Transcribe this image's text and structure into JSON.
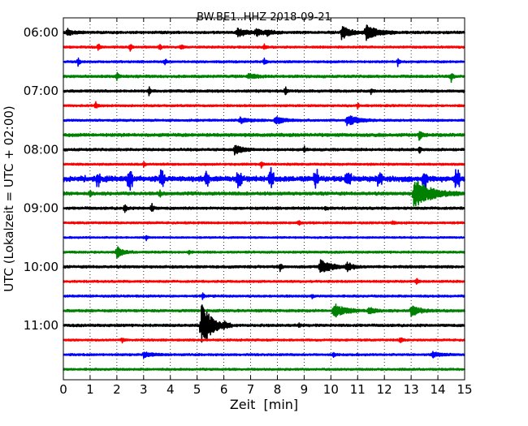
{
  "chart_data": {
    "type": "line",
    "title": "BW.BE1..HHZ 2018-09-21",
    "xlabel": "Zeit  [min]",
    "ylabel": "UTC (Lokalzeit = UTC + 02:00)",
    "xlim": [
      0,
      15
    ],
    "x_ticks": [
      "0",
      "1",
      "2",
      "3",
      "4",
      "5",
      "6",
      "7",
      "8",
      "9",
      "10",
      "11",
      "12",
      "13",
      "14",
      "15"
    ],
    "y_tick_labels": [
      "06:00",
      "07:00",
      "08:00",
      "09:00",
      "10:00",
      "11:00"
    ],
    "trace_minutes": 15,
    "colors": [
      "#000000",
      "#ff0000",
      "#0000ff",
      "#008000"
    ],
    "grid": "vertical dotted lines at each minute",
    "series": [
      {
        "start": "06:00",
        "color": "#000000",
        "base_amp": 1.2,
        "events": [
          {
            "t": 0.15,
            "a": 4,
            "d": 0.2
          },
          {
            "t": 6.5,
            "a": 5,
            "d": 0.3
          },
          {
            "t": 7.2,
            "a": 4,
            "d": 0.25
          },
          {
            "t": 7.6,
            "a": 3,
            "d": 0.2
          },
          {
            "t": 10.4,
            "a": 8,
            "d": 0.3
          },
          {
            "t": 11.3,
            "a": 9,
            "d": 0.4
          }
        ]
      },
      {
        "start": "06:15",
        "color": "#ff0000",
        "base_amp": 1.0,
        "events": [
          {
            "t": 1.3,
            "a": 5,
            "d": 0.05
          },
          {
            "t": 2.5,
            "a": 5,
            "d": 0.05
          },
          {
            "t": 3.6,
            "a": 4,
            "d": 0.05
          },
          {
            "t": 4.4,
            "a": 4,
            "d": 0.05
          },
          {
            "t": 7.5,
            "a": 4,
            "d": 0.05
          }
        ]
      },
      {
        "start": "06:30",
        "color": "#0000ff",
        "base_amp": 1.0,
        "events": [
          {
            "t": 0.55,
            "a": 5,
            "d": 0.05
          },
          {
            "t": 3.8,
            "a": 4,
            "d": 0.05
          },
          {
            "t": 7.5,
            "a": 5,
            "d": 0.05
          },
          {
            "t": 12.5,
            "a": 5,
            "d": 0.05
          }
        ]
      },
      {
        "start": "06:45",
        "color": "#008000",
        "base_amp": 1.2,
        "events": [
          {
            "t": 2.0,
            "a": 6,
            "d": 0.05
          },
          {
            "t": 6.9,
            "a": 3,
            "d": 0.3
          },
          {
            "t": 14.5,
            "a": 7,
            "d": 0.05
          }
        ]
      },
      {
        "start": "07:00",
        "color": "#000000",
        "base_amp": 1.2,
        "events": [
          {
            "t": 3.2,
            "a": 5,
            "d": 0.05
          },
          {
            "t": 8.3,
            "a": 5,
            "d": 0.05
          },
          {
            "t": 11.5,
            "a": 4,
            "d": 0.05
          }
        ]
      },
      {
        "start": "07:15",
        "color": "#ff0000",
        "base_amp": 1.0,
        "events": [
          {
            "t": 1.2,
            "a": 5,
            "d": 0.05
          },
          {
            "t": 11.0,
            "a": 3,
            "d": 0.05
          }
        ]
      },
      {
        "start": "07:30",
        "color": "#0000ff",
        "base_amp": 1.0,
        "events": [
          {
            "t": 6.6,
            "a": 3,
            "d": 0.3
          },
          {
            "t": 7.9,
            "a": 5,
            "d": 0.3
          },
          {
            "t": 10.6,
            "a": 7,
            "d": 0.35
          }
        ]
      },
      {
        "start": "07:45",
        "color": "#008000",
        "base_amp": 1.5,
        "events": [
          {
            "t": 13.3,
            "a": 6,
            "d": 0.1
          }
        ]
      },
      {
        "start": "08:00",
        "color": "#000000",
        "base_amp": 1.2,
        "events": [
          {
            "t": 6.4,
            "a": 6,
            "d": 0.25
          },
          {
            "t": 9.0,
            "a": 4,
            "d": 0.05
          },
          {
            "t": 13.3,
            "a": 5,
            "d": 0.05
          }
        ]
      },
      {
        "start": "08:15",
        "color": "#ff0000",
        "base_amp": 1.0,
        "events": [
          {
            "t": 3.0,
            "a": 3,
            "d": 0.05
          },
          {
            "t": 7.4,
            "a": 4,
            "d": 0.05
          }
        ]
      },
      {
        "start": "08:30",
        "color": "#0000ff",
        "base_amp": 2.5,
        "burst": true,
        "events": []
      },
      {
        "start": "08:45",
        "color": "#008000",
        "base_amp": 1.5,
        "events": [
          {
            "t": 1.0,
            "a": 4,
            "d": 0.05
          },
          {
            "t": 3.6,
            "a": 4,
            "d": 0.05
          },
          {
            "t": 13.1,
            "a": 18,
            "d": 0.55
          }
        ]
      },
      {
        "start": "09:00",
        "color": "#000000",
        "base_amp": 1.2,
        "events": [
          {
            "t": 2.3,
            "a": 6,
            "d": 0.05
          },
          {
            "t": 3.3,
            "a": 7,
            "d": 0.05
          },
          {
            "t": 9.8,
            "a": 3,
            "d": 0.05
          }
        ]
      },
      {
        "start": "09:15",
        "color": "#ff0000",
        "base_amp": 1.0,
        "events": [
          {
            "t": 8.8,
            "a": 3,
            "d": 0.05
          },
          {
            "t": 12.3,
            "a": 3,
            "d": 0.05
          }
        ]
      },
      {
        "start": "09:30",
        "color": "#0000ff",
        "base_amp": 0.8,
        "events": [
          {
            "t": 3.1,
            "a": 3,
            "d": 0.05
          }
        ]
      },
      {
        "start": "09:45",
        "color": "#008000",
        "base_amp": 1.0,
        "events": [
          {
            "t": 2.0,
            "a": 7,
            "d": 0.2
          },
          {
            "t": 4.7,
            "a": 3,
            "d": 0.05
          }
        ]
      },
      {
        "start": "10:00",
        "color": "#000000",
        "base_amp": 1.2,
        "events": [
          {
            "t": 8.1,
            "a": 5,
            "d": 0.05
          },
          {
            "t": 9.6,
            "a": 8,
            "d": 0.4
          },
          {
            "t": 10.6,
            "a": 5,
            "d": 0.2
          }
        ]
      },
      {
        "start": "10:15",
        "color": "#ff0000",
        "base_amp": 1.0,
        "events": [
          {
            "t": 13.2,
            "a": 4,
            "d": 0.05
          }
        ]
      },
      {
        "start": "10:30",
        "color": "#0000ff",
        "base_amp": 1.0,
        "events": [
          {
            "t": 5.2,
            "a": 4,
            "d": 0.05
          },
          {
            "t": 9.3,
            "a": 3,
            "d": 0.05
          }
        ]
      },
      {
        "start": "10:45",
        "color": "#008000",
        "base_amp": 1.2,
        "events": [
          {
            "t": 10.1,
            "a": 9,
            "d": 0.35
          },
          {
            "t": 11.4,
            "a": 5,
            "d": 0.2
          },
          {
            "t": 13.0,
            "a": 6,
            "d": 0.3
          }
        ]
      },
      {
        "start": "11:00",
        "color": "#000000",
        "base_amp": 1.2,
        "events": [
          {
            "t": 5.15,
            "a": 28,
            "d": 0.35
          },
          {
            "t": 6.0,
            "a": 4,
            "d": 0.05
          },
          {
            "t": 8.8,
            "a": 3,
            "d": 0.05
          }
        ]
      },
      {
        "start": "11:15",
        "color": "#ff0000",
        "base_amp": 1.0,
        "events": [
          {
            "t": 2.2,
            "a": 4,
            "d": 0.05
          },
          {
            "t": 12.6,
            "a": 4,
            "d": 0.05
          }
        ]
      },
      {
        "start": "11:30",
        "color": "#0000ff",
        "base_amp": 1.0,
        "events": [
          {
            "t": 3.0,
            "a": 3,
            "d": 0.3
          },
          {
            "t": 10.1,
            "a": 4,
            "d": 0.05
          },
          {
            "t": 13.8,
            "a": 3,
            "d": 0.3
          }
        ]
      },
      {
        "start": "11:45",
        "color": "#008000",
        "base_amp": 1.0,
        "events": []
      }
    ]
  }
}
